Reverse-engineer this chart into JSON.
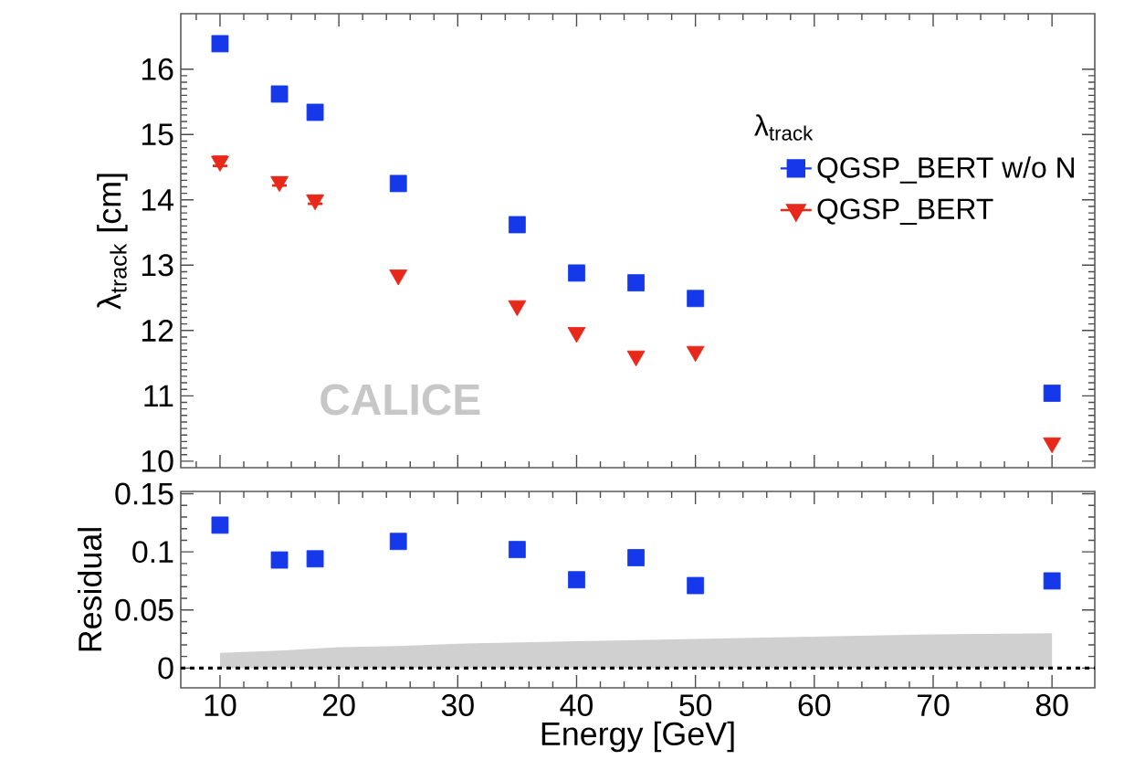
{
  "chart_data": [
    {
      "type": "scatter",
      "ylabel": "λ$_{track}$ [cm]",
      "legend_title": "λ$_{track}$",
      "legend": "right",
      "tick_labels": "y",
      "xlim": [
        6.7,
        83.6
      ],
      "ylim": [
        9.9,
        16.85
      ],
      "yticks": [
        10,
        11,
        12,
        13,
        14,
        15,
        16
      ],
      "x": [
        10,
        15,
        18,
        25,
        35,
        40,
        45,
        50,
        80
      ],
      "series": [
        {
          "name": "QGSP_BERT w/o N",
          "color": "#1538ea",
          "marker": "square",
          "values": [
            16.39,
            15.62,
            15.34,
            14.25,
            13.62,
            12.88,
            12.73,
            12.49,
            11.04
          ],
          "errors": [
            0.07,
            null,
            null,
            null,
            null,
            null,
            null,
            null,
            null
          ]
        },
        {
          "name": "QGSP_BERT",
          "color": "#e8281a",
          "marker": "triangle",
          "values": [
            14.59,
            14.28,
            14.0,
            12.85,
            12.38,
            11.97,
            11.61,
            11.68,
            10.28
          ],
          "errors": [
            0.07,
            0.06,
            0.06,
            null,
            null,
            null,
            null,
            null,
            null
          ]
        }
      ],
      "annotations": [
        "CALICE"
      ]
    },
    {
      "type": "scatter",
      "xlabel": "Energy [GeV]",
      "ylabel": "Residual",
      "xlim": [
        6.7,
        83.6
      ],
      "ylim": [
        -0.017,
        0.152
      ],
      "xticks": [
        10,
        20,
        30,
        40,
        50,
        60,
        70,
        80
      ],
      "yticks": [
        0,
        0.05,
        0.1,
        0.15
      ],
      "x": [
        10,
        15,
        18,
        25,
        35,
        40,
        45,
        50,
        80
      ],
      "series": [
        {
          "color": "#1538ea",
          "marker": "square",
          "values": [
            0.123,
            0.093,
            0.094,
            0.109,
            0.102,
            0.076,
            0.095,
            0.071,
            0.075
          ]
        },
        {
          "type": "area",
          "color": "#d0d0d0",
          "x": [
            10,
            15,
            20,
            25,
            30,
            40,
            50,
            60,
            70,
            80
          ],
          "values": [
            0.013,
            0.015,
            0.018,
            0.019,
            0.021,
            0.023,
            0.025,
            0.027,
            0.029,
            0.03
          ]
        }
      ],
      "ref_lines": [
        {
          "axis": "y",
          "value": 0,
          "color": "#000000",
          "line_style": "dotted"
        }
      ]
    }
  ]
}
